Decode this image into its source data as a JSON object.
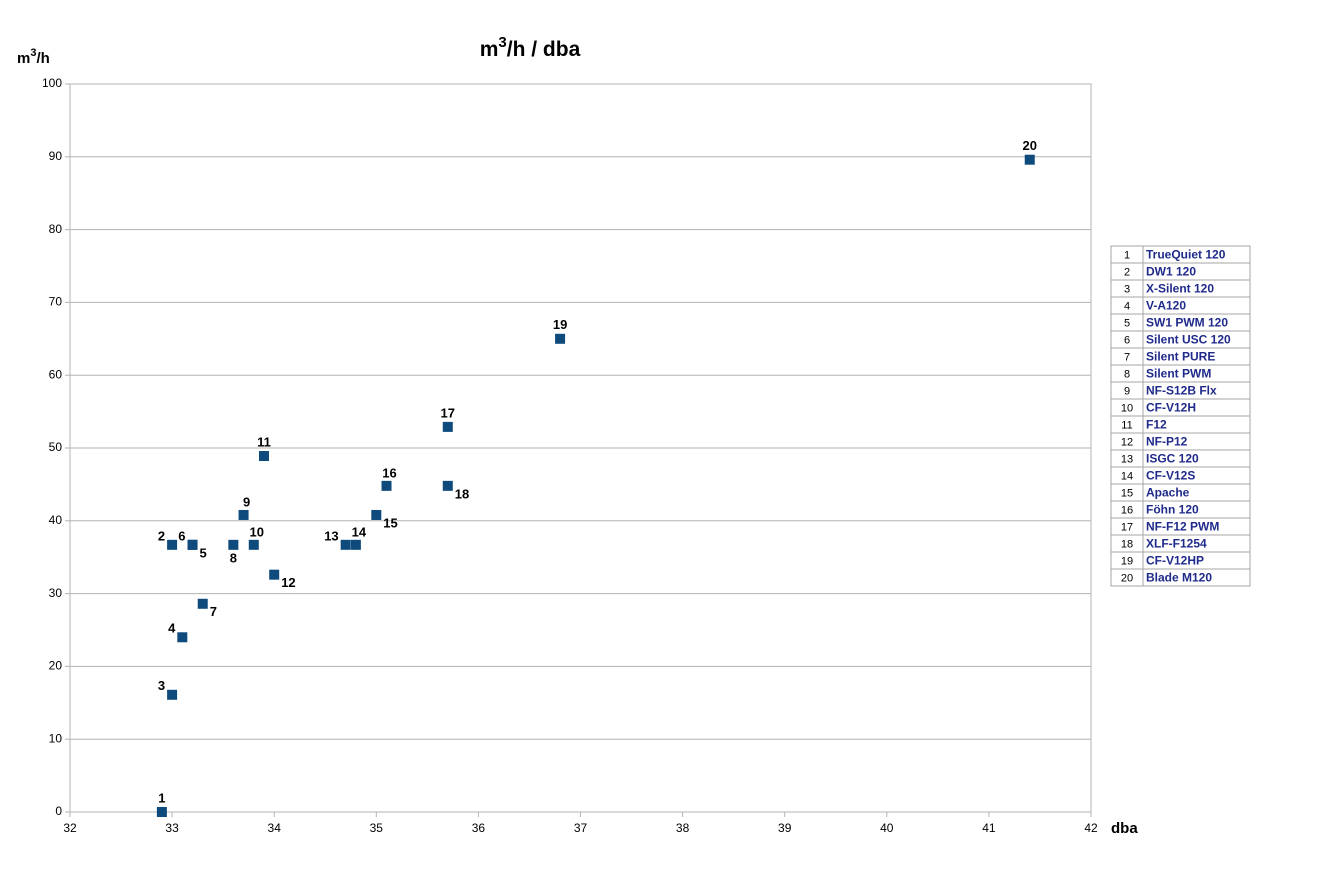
{
  "chart_data": {
    "type": "scatter",
    "title": [
      "m",
      "3",
      "/h / dba"
    ],
    "y_label": [
      "m",
      "3",
      "/h"
    ],
    "x_label": "dba",
    "series": [
      {
        "color": "#0e4a7c",
        "x": [
          32.9,
          33.0,
          33.0,
          33.1,
          33.2,
          33.2,
          33.3,
          33.6,
          33.7,
          33.8,
          33.9,
          34.0,
          34.7,
          34.8,
          35.0,
          35.1,
          35.7,
          35.7,
          36.8,
          41.4
        ],
        "values": [
          0,
          36.7,
          16.1,
          24.0,
          36.7,
          36.7,
          28.6,
          36.7,
          40.8,
          36.7,
          48.9,
          32.6,
          36.7,
          36.7,
          40.8,
          44.8,
          52.9,
          44.8,
          65.0,
          89.6
        ],
        "labels": [
          "1",
          "2",
          "3",
          "4",
          "5",
          "6",
          "7",
          "8",
          "9",
          "10",
          "11",
          "12",
          "13",
          "14",
          "15",
          "16",
          "17",
          "18",
          "19",
          "20"
        ],
        "names": [
          "TrueQuiet 120",
          "DW1 120",
          "X-Silent 120",
          "V-A120",
          "SW1 PWM 120",
          "Silent USC 120",
          "Silent PURE",
          "Silent PWM",
          "NF-S12B Flx",
          "CF-V12H",
          "F12",
          "NF-P12",
          "ISGC 120",
          "CF-V12S",
          "Apache",
          "Föhn 120",
          "NF-F12 PWM",
          "XLF-F1254",
          "CF-V12HP",
          "Blade M120"
        ]
      }
    ],
    "xlim": [
      32,
      42
    ],
    "xticks": [
      32,
      33,
      34,
      35,
      36,
      37,
      38,
      39,
      40,
      41,
      42
    ],
    "ylim": [
      0,
      100
    ],
    "yticks": [
      0,
      10,
      20,
      30,
      40,
      50,
      60,
      70,
      80,
      90,
      100
    ],
    "grid": true,
    "legend_color": "#1f2a8a"
  }
}
